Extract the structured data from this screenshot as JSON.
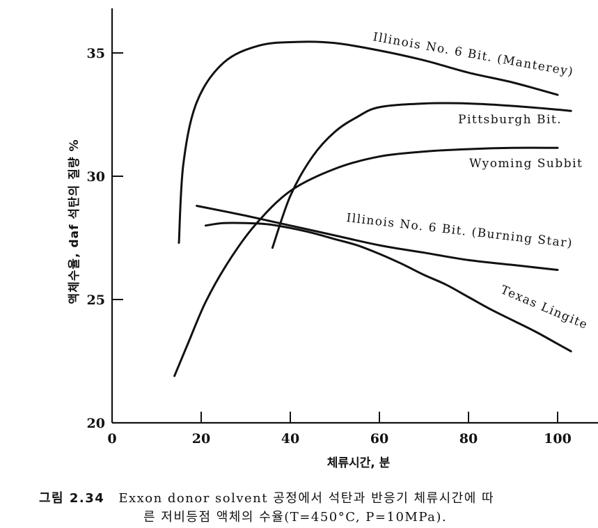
{
  "chart_data": {
    "type": "line",
    "xlabel": "체류시간, 분",
    "ylabel": "액체수율, daf 석탄의 질량 %",
    "xlim": [
      0,
      105
    ],
    "ylim": [
      20,
      37
    ],
    "xticks": [
      0,
      20,
      40,
      60,
      80,
      100
    ],
    "yticks": [
      20,
      25,
      30,
      35
    ],
    "grid": false,
    "series": [
      {
        "name": "Illinois No. 6 Bit. (Manterey)",
        "x": [
          15,
          16,
          19,
          25,
          33,
          42,
          50,
          60,
          70,
          80,
          90,
          100
        ],
        "y": [
          27.3,
          30.5,
          33.0,
          34.6,
          35.3,
          35.45,
          35.4,
          35.1,
          34.7,
          34.2,
          33.8,
          33.3
        ]
      },
      {
        "name": "Pittsburgh Bit.",
        "x": [
          36,
          40,
          45,
          50,
          55,
          60,
          70,
          80,
          90,
          100,
          103
        ],
        "y": [
          27.1,
          29.2,
          30.8,
          31.8,
          32.4,
          32.8,
          32.95,
          32.95,
          32.85,
          32.7,
          32.65
        ]
      },
      {
        "name": "Wyoming Subbit",
        "x": [
          14,
          17,
          21,
          26,
          32,
          40,
          50,
          60,
          70,
          80,
          90,
          100
        ],
        "y": [
          21.9,
          23.2,
          24.9,
          26.5,
          28.0,
          29.4,
          30.3,
          30.8,
          31.0,
          31.1,
          31.15,
          31.15
        ]
      },
      {
        "name": "Illinois No. 6 Bit. (Burning Star)",
        "x": [
          19,
          30,
          40,
          50,
          60,
          70,
          80,
          90,
          100
        ],
        "y": [
          28.8,
          28.4,
          28.0,
          27.6,
          27.2,
          26.9,
          26.6,
          26.4,
          26.2
        ]
      },
      {
        "name": "Texas Lingite",
        "x": [
          21,
          25,
          30,
          35,
          40,
          45,
          50,
          55,
          60,
          65,
          70,
          75,
          80,
          85,
          90,
          95,
          100,
          103
        ],
        "y": [
          28.0,
          28.1,
          28.1,
          28.05,
          27.9,
          27.7,
          27.45,
          27.2,
          26.85,
          26.45,
          26.0,
          25.6,
          25.1,
          24.6,
          24.15,
          23.7,
          23.2,
          22.9
        ]
      }
    ]
  },
  "caption": {
    "figure_number": "그림 2.34",
    "line1": "Exxon donor solvent 공정에서 석탄과 반응기 체류시간에 따",
    "line2": "른 저비등점 액체의 수율(T=450°C, P=10MPa)."
  }
}
